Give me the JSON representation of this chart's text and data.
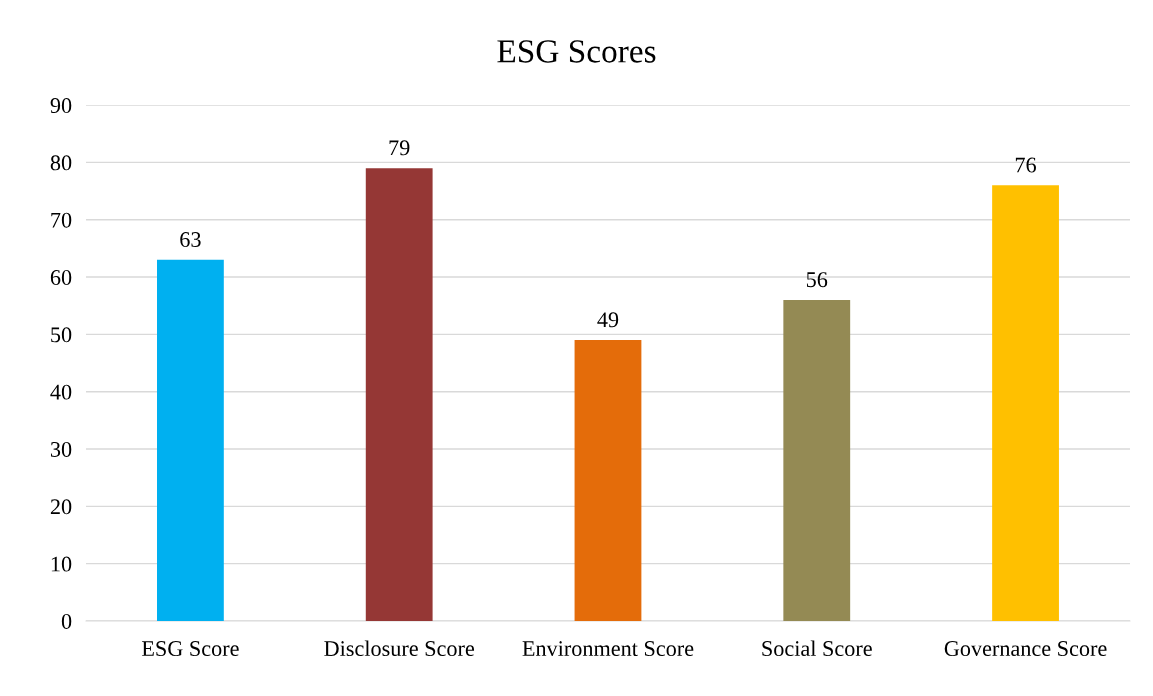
{
  "chart_data": {
    "type": "bar",
    "title": "ESG Scores",
    "categories": [
      "ESG Score",
      "Disclosure Score",
      "Environment Score",
      "Social Score",
      "Governance Score"
    ],
    "values": [
      63,
      79,
      49,
      56,
      76
    ],
    "colors": [
      "#00b0f0",
      "#953735",
      "#e46c0a",
      "#948a54",
      "#ffc000"
    ],
    "ylim": [
      0,
      90
    ],
    "yticks": [
      0,
      10,
      20,
      30,
      40,
      50,
      60,
      70,
      80,
      90
    ],
    "grid": "y",
    "data_labels": true
  }
}
